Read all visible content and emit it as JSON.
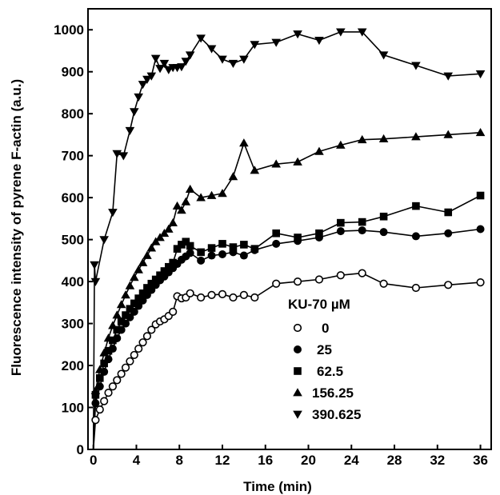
{
  "chart_data": {
    "type": "line",
    "title": "",
    "xlabel": "Time (min)",
    "ylabel": "Fluorescence intensity of pyrene F-actin (a.u.)",
    "xlim": [
      -0.5,
      37
    ],
    "ylim": [
      0,
      1050
    ],
    "xticks": [
      0,
      4,
      8,
      12,
      16,
      20,
      24,
      28,
      32,
      36
    ],
    "yticks": [
      0,
      100,
      200,
      300,
      400,
      500,
      600,
      700,
      800,
      900,
      1000
    ],
    "grid": false,
    "legend": {
      "title": "KU-70 µM",
      "position": "bottom-right"
    },
    "series": [
      {
        "name": "0",
        "marker": "circle-open",
        "points": [
          [
            0,
            0
          ],
          [
            0.2,
            70
          ],
          [
            0.6,
            95
          ],
          [
            1,
            115
          ],
          [
            1.4,
            135
          ],
          [
            1.8,
            150
          ],
          [
            2.2,
            165
          ],
          [
            2.6,
            180
          ],
          [
            3,
            195
          ],
          [
            3.4,
            210
          ],
          [
            3.8,
            225
          ],
          [
            4.2,
            240
          ],
          [
            4.6,
            255
          ],
          [
            5,
            270
          ],
          [
            5.4,
            285
          ],
          [
            5.8,
            298
          ],
          [
            6.2,
            305
          ],
          [
            6.6,
            310
          ],
          [
            7,
            318
          ],
          [
            7.4,
            328
          ],
          [
            7.8,
            365
          ],
          [
            8.2,
            360
          ],
          [
            8.6,
            362
          ],
          [
            9,
            372
          ],
          [
            10,
            362
          ],
          [
            11,
            368
          ],
          [
            12,
            370
          ],
          [
            13,
            362
          ],
          [
            14,
            368
          ],
          [
            15,
            362
          ],
          [
            17,
            395
          ],
          [
            19,
            400
          ],
          [
            21,
            405
          ],
          [
            23,
            415
          ],
          [
            25,
            420
          ],
          [
            27,
            395
          ],
          [
            30,
            385
          ],
          [
            33,
            392
          ],
          [
            36,
            398
          ]
        ]
      },
      {
        "name": "25",
        "marker": "circle",
        "points": [
          [
            0,
            0
          ],
          [
            0.2,
            110
          ],
          [
            0.6,
            150
          ],
          [
            1,
            185
          ],
          [
            1.4,
            215
          ],
          [
            1.8,
            240
          ],
          [
            2.2,
            265
          ],
          [
            2.6,
            285
          ],
          [
            3,
            300
          ],
          [
            3.4,
            315
          ],
          [
            3.8,
            328
          ],
          [
            4.2,
            342
          ],
          [
            4.6,
            355
          ],
          [
            5,
            368
          ],
          [
            5.4,
            380
          ],
          [
            5.8,
            392
          ],
          [
            6.2,
            403
          ],
          [
            6.6,
            412
          ],
          [
            7,
            422
          ],
          [
            7.4,
            432
          ],
          [
            7.8,
            442
          ],
          [
            8.2,
            452
          ],
          [
            8.6,
            460
          ],
          [
            9,
            468
          ],
          [
            10,
            450
          ],
          [
            11,
            462
          ],
          [
            12,
            465
          ],
          [
            13,
            470
          ],
          [
            14,
            462
          ],
          [
            15,
            475
          ],
          [
            17,
            490
          ],
          [
            19,
            497
          ],
          [
            21,
            505
          ],
          [
            23,
            520
          ],
          [
            25,
            522
          ],
          [
            27,
            518
          ],
          [
            30,
            508
          ],
          [
            33,
            515
          ],
          [
            36,
            525
          ]
        ]
      },
      {
        "name": "62.5",
        "marker": "square",
        "points": [
          [
            0,
            0
          ],
          [
            0.2,
            130
          ],
          [
            0.6,
            170
          ],
          [
            1,
            205
          ],
          [
            1.4,
            235
          ],
          [
            1.8,
            260
          ],
          [
            2.2,
            285
          ],
          [
            2.6,
            305
          ],
          [
            3,
            320
          ],
          [
            3.4,
            335
          ],
          [
            3.8,
            348
          ],
          [
            4.2,
            360
          ],
          [
            4.6,
            372
          ],
          [
            5,
            385
          ],
          [
            5.4,
            395
          ],
          [
            5.8,
            405
          ],
          [
            6.2,
            415
          ],
          [
            6.6,
            425
          ],
          [
            7,
            435
          ],
          [
            7.4,
            445
          ],
          [
            7.8,
            478
          ],
          [
            8.2,
            488
          ],
          [
            8.6,
            495
          ],
          [
            9,
            485
          ],
          [
            10,
            470
          ],
          [
            11,
            480
          ],
          [
            12,
            490
          ],
          [
            13,
            482
          ],
          [
            14,
            488
          ],
          [
            15,
            478
          ],
          [
            17,
            515
          ],
          [
            19,
            505
          ],
          [
            21,
            515
          ],
          [
            23,
            540
          ],
          [
            25,
            542
          ],
          [
            27,
            555
          ],
          [
            30,
            580
          ],
          [
            33,
            565
          ],
          [
            36,
            605
          ]
        ]
      },
      {
        "name": "156.25",
        "marker": "triangle-up",
        "points": [
          [
            0,
            0
          ],
          [
            0.2,
            140
          ],
          [
            0.6,
            190
          ],
          [
            1,
            230
          ],
          [
            1.4,
            265
          ],
          [
            1.8,
            295
          ],
          [
            2.2,
            320
          ],
          [
            2.6,
            345
          ],
          [
            3,
            368
          ],
          [
            3.4,
            390
          ],
          [
            3.8,
            410
          ],
          [
            4.2,
            428
          ],
          [
            4.6,
            445
          ],
          [
            5,
            462
          ],
          [
            5.4,
            480
          ],
          [
            5.8,
            495
          ],
          [
            6.2,
            505
          ],
          [
            6.6,
            515
          ],
          [
            7,
            525
          ],
          [
            7.4,
            540
          ],
          [
            7.8,
            580
          ],
          [
            8.2,
            570
          ],
          [
            8.6,
            590
          ],
          [
            9,
            620
          ],
          [
            10,
            600
          ],
          [
            11,
            605
          ],
          [
            12,
            610
          ],
          [
            13,
            650
          ],
          [
            14,
            730
          ],
          [
            15,
            665
          ],
          [
            17,
            680
          ],
          [
            19,
            685
          ],
          [
            21,
            710
          ],
          [
            23,
            725
          ],
          [
            25,
            738
          ],
          [
            27,
            740
          ],
          [
            30,
            745
          ],
          [
            33,
            750
          ],
          [
            36,
            755
          ]
        ]
      },
      {
        "name": "390.625",
        "marker": "triangle-down",
        "points": [
          [
            0,
            0
          ],
          [
            0.1,
            440
          ],
          [
            0.2,
            400
          ],
          [
            1,
            500
          ],
          [
            1.8,
            565
          ],
          [
            2.2,
            705
          ],
          [
            2.8,
            700
          ],
          [
            3.4,
            760
          ],
          [
            3.8,
            805
          ],
          [
            4.2,
            840
          ],
          [
            4.6,
            870
          ],
          [
            5,
            882
          ],
          [
            5.4,
            890
          ],
          [
            5.8,
            932
          ],
          [
            6.2,
            908
          ],
          [
            6.6,
            920
          ],
          [
            7,
            905
          ],
          [
            7.4,
            910
          ],
          [
            7.8,
            910
          ],
          [
            8.2,
            912
          ],
          [
            8.6,
            925
          ],
          [
            9,
            940
          ],
          [
            10,
            980
          ],
          [
            11,
            955
          ],
          [
            12,
            930
          ],
          [
            13,
            920
          ],
          [
            14,
            930
          ],
          [
            15,
            965
          ],
          [
            17,
            970
          ],
          [
            19,
            990
          ],
          [
            21,
            975
          ],
          [
            23,
            995
          ],
          [
            25,
            995
          ],
          [
            27,
            940
          ],
          [
            30,
            915
          ],
          [
            33,
            890
          ],
          [
            36,
            895
          ]
        ]
      }
    ]
  }
}
